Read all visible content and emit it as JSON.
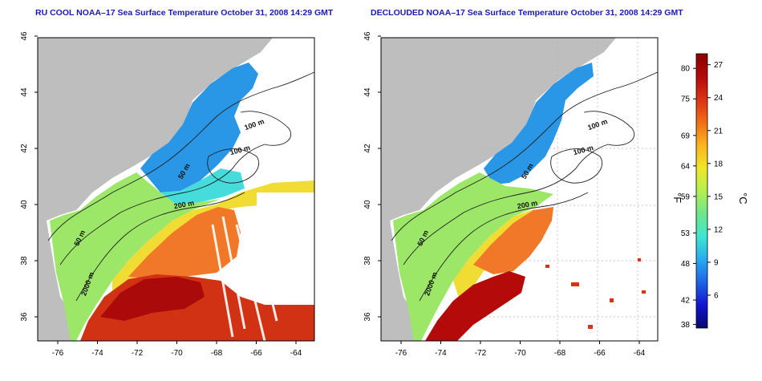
{
  "titles": {
    "left": "RU COOL NOAA–17 Sea Surface Temperature October 31, 2008 14:29 GMT",
    "right": "DECLOUDED NOAA–17 Sea Surface Temperature October 31, 2008 14:29 GMT"
  },
  "axes": {
    "lon_ticks": [
      "-76",
      "-74",
      "-72",
      "-70",
      "-68",
      "-66",
      "-64"
    ],
    "lat_ticks": [
      "36",
      "38",
      "40",
      "42",
      "44",
      "46"
    ]
  },
  "contour_labels": {
    "left": [
      "100 m",
      "100 m",
      "50 m",
      "200 m",
      "50 m",
      "2000 m"
    ],
    "right": [
      "100 m",
      "100 m",
      "50 m",
      "200 m",
      "50 m",
      "2000 m"
    ]
  },
  "colorbar": {
    "f_label": "°F",
    "c_label": "°C",
    "f_ticks": [
      "80",
      "75",
      "69",
      "64",
      "59",
      "53",
      "48",
      "42",
      "38"
    ],
    "c_ticks": [
      "27",
      "24",
      "21",
      "18",
      "15",
      "12",
      "9",
      "6"
    ],
    "c_range": [
      3,
      28
    ],
    "colors": [
      "#08086e",
      "#1414d2",
      "#1e64e6",
      "#28aaf0",
      "#3ce6d2",
      "#6ee68c",
      "#b4f050",
      "#f0e628",
      "#fab41e",
      "#f06e14",
      "#dc3214",
      "#b40a0a",
      "#8c0000"
    ]
  },
  "colors": {
    "land": "#bebebe",
    "title": "#1a1ab4",
    "contour": "#222222",
    "grid": "#b4b4b4"
  }
}
